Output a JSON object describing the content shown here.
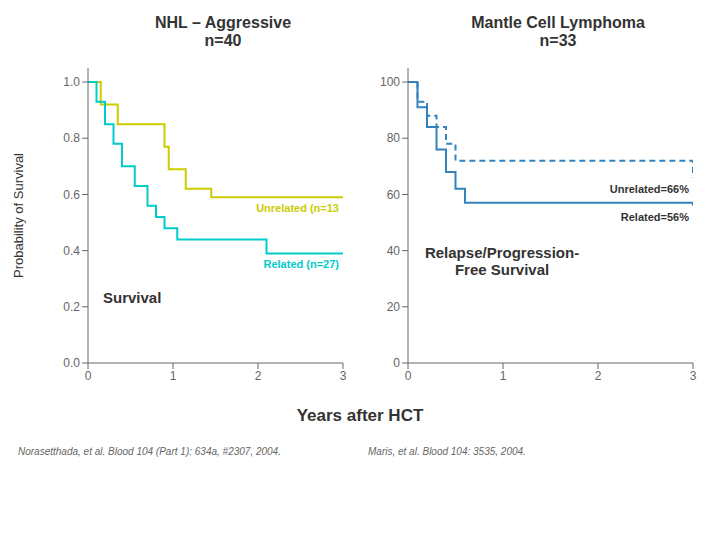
{
  "chart_data": [
    {
      "type": "step",
      "title": "NHL – Aggressive\nn=40",
      "x_label": "Years after HCT",
      "y_label": "Probability of Survival",
      "annotations": [
        "Survival"
      ],
      "footnote": "Norasetthada, et al. Blood 104 (Part 1): 634a, #2307, 2004.",
      "grid": false,
      "xlim": [
        0,
        3
      ],
      "xticks": [
        0,
        1,
        2,
        3
      ],
      "ylim": [
        0.0,
        1.05
      ],
      "yticks": [
        {
          "value": 0,
          "label": "0.0"
        },
        0.2,
        0.4,
        0.6,
        0.8,
        {
          "value": 1,
          "label": "1.0"
        }
      ],
      "series": [
        {
          "name": "Unrelated (n=13",
          "color": "#cccc00",
          "line_style": "solid",
          "x": [
            0.0,
            0.1,
            0.15,
            0.3,
            0.35,
            0.55,
            0.9,
            0.95,
            1.15,
            1.4,
            1.45,
            1.65,
            3.0
          ],
          "values": [
            1.0,
            1.0,
            0.92,
            0.92,
            0.85,
            0.85,
            0.77,
            0.69,
            0.62,
            0.62,
            0.59,
            0.59,
            0.59
          ]
        },
        {
          "name": "Related (n=27)",
          "color": "#00cccc",
          "line_style": "solid",
          "x": [
            0.0,
            0.05,
            0.1,
            0.2,
            0.3,
            0.4,
            0.55,
            0.7,
            0.8,
            0.9,
            1.05,
            1.2,
            1.5,
            1.55,
            1.9,
            2.1,
            2.35,
            2.65,
            3.0
          ],
          "values": [
            1.0,
            1.0,
            0.93,
            0.85,
            0.78,
            0.7,
            0.63,
            0.56,
            0.52,
            0.48,
            0.44,
            0.44,
            0.44,
            0.44,
            0.44,
            0.39,
            0.39,
            0.39,
            0.39
          ]
        }
      ]
    },
    {
      "type": "step",
      "title": "Mantle Cell Lymphoma\nn=33",
      "annotations": [
        "Relapse/Progression-\nFree Survival"
      ],
      "footnote": "Maris, et al.  Blood 104: 3535, 2004.",
      "grid": false,
      "xlim": [
        0,
        3
      ],
      "xticks": [
        0,
        1,
        2,
        3
      ],
      "ylim": [
        0,
        105
      ],
      "yticks": [
        0,
        20,
        40,
        60,
        80,
        100
      ],
      "series": [
        {
          "name": "Unrelated=66%",
          "line_style": "dashed",
          "x": [
            0.0,
            0.05,
            0.1,
            0.15,
            0.2,
            0.25,
            0.3,
            0.35,
            0.4,
            0.45,
            0.5,
            0.55,
            3.0
          ],
          "values": [
            100,
            100,
            93,
            93,
            88,
            88,
            84,
            84,
            78,
            78,
            72,
            72,
            66
          ]
        },
        {
          "name": "Related=56%",
          "line_style": "solid",
          "x": [
            0.0,
            0.05,
            0.1,
            0.15,
            0.2,
            0.25,
            0.3,
            0.35,
            0.4,
            0.45,
            0.5,
            0.55,
            0.6,
            0.65,
            3.0
          ],
          "values": [
            100,
            100,
            91,
            91,
            84,
            84,
            76,
            76,
            68,
            68,
            62,
            62,
            57,
            57,
            56
          ]
        }
      ]
    }
  ]
}
